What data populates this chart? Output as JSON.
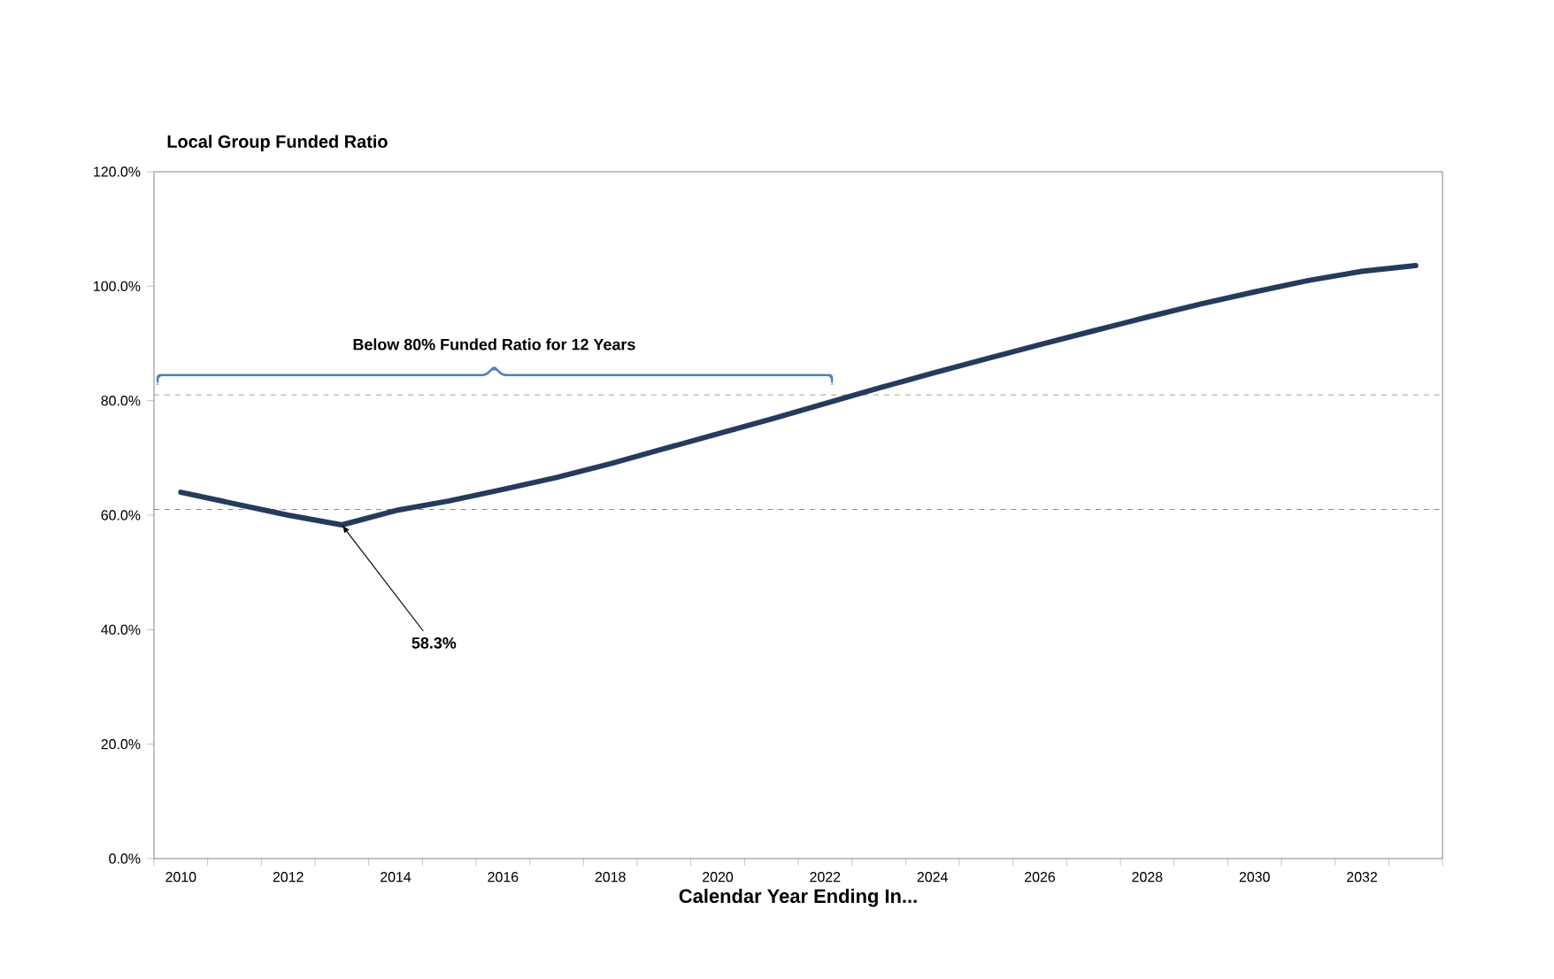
{
  "chart_data": {
    "type": "line",
    "title": "Local Group Funded Ratio",
    "xlabel": "Calendar Year Ending In...",
    "x": [
      2010,
      2011,
      2012,
      2013,
      2014,
      2015,
      2016,
      2017,
      2018,
      2019,
      2020,
      2021,
      2022,
      2023,
      2024,
      2025,
      2026,
      2027,
      2028,
      2029,
      2030,
      2031,
      2032,
      2033
    ],
    "xlim": [
      2009.5,
      2033.5
    ],
    "xticks": [
      2010,
      2012,
      2014,
      2016,
      2018,
      2020,
      2022,
      2024,
      2026,
      2028,
      2030,
      2032
    ],
    "series": [
      {
        "color": "#253b5c",
        "values": [
          64.0,
          62.0,
          60.0,
          58.3,
          60.8,
          62.5,
          64.5,
          66.6,
          69.0,
          71.6,
          74.2,
          76.8,
          79.5,
          82.2,
          84.8,
          87.3,
          89.8,
          92.2,
          94.6,
          96.9,
          99.0,
          101.0,
          102.6,
          103.6
        ]
      }
    ],
    "ylim": [
      0,
      120
    ],
    "yticks": [
      {
        "value": 0,
        "label": "0.0%"
      },
      {
        "value": 20,
        "label": "20.0%"
      },
      {
        "value": 40,
        "label": "40.0%"
      },
      {
        "value": 60,
        "label": "60.0%"
      },
      {
        "value": 80,
        "label": "80.0%"
      },
      {
        "value": 100,
        "label": "100.0%"
      },
      {
        "value": 120,
        "label": "120.0%"
      }
    ],
    "ref_lines": [
      {
        "axis": "y",
        "value": 81,
        "color": "#b8b890",
        "line_style": "dashed"
      },
      {
        "axis": "y",
        "value": 61,
        "color": "#e06666",
        "line_style": "dashed"
      }
    ],
    "annotations": [
      "Below 80% Funded Ratio for 12 Years",
      {
        "text": "58.3%",
        "x": 2013,
        "y": 58.3
      }
    ]
  }
}
